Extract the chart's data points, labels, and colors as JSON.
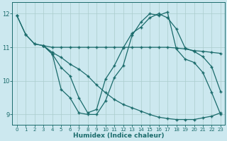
{
  "xlabel": "Humidex (Indice chaleur)",
  "bg_color": "#cce8ef",
  "grid_color": "#aacccc",
  "line_color": "#1a6b6b",
  "xlim": [
    -0.5,
    23.5
  ],
  "ylim": [
    8.7,
    12.35
  ],
  "xticks": [
    0,
    1,
    2,
    3,
    4,
    5,
    6,
    7,
    8,
    9,
    10,
    11,
    12,
    13,
    14,
    15,
    16,
    17,
    18,
    19,
    20,
    21,
    22,
    23
  ],
  "yticks": [
    9,
    10,
    11,
    12
  ],
  "line1_x": [
    0,
    1,
    2,
    3,
    4,
    5,
    6,
    7,
    8,
    9,
    10,
    11,
    12,
    13,
    14,
    15,
    16,
    17,
    18,
    19,
    20,
    21,
    22,
    23
  ],
  "line1_y": [
    11.95,
    11.38,
    11.1,
    11.05,
    11.0,
    11.0,
    11.0,
    11.0,
    11.0,
    11.0,
    11.0,
    11.0,
    11.0,
    11.0,
    11.0,
    11.0,
    11.0,
    11.0,
    10.98,
    10.95,
    10.9,
    10.88,
    10.85,
    10.82
  ],
  "line2_x": [
    0,
    1,
    2,
    3,
    4,
    5,
    6,
    7,
    8,
    9,
    10,
    11,
    12,
    13,
    14,
    15,
    16,
    17,
    18,
    19,
    20,
    21,
    22,
    23
  ],
  "line2_y": [
    11.95,
    11.38,
    11.1,
    11.05,
    10.85,
    10.7,
    10.5,
    10.35,
    10.15,
    9.88,
    9.65,
    9.45,
    9.3,
    9.2,
    9.1,
    9.0,
    8.92,
    8.88,
    8.85,
    8.85,
    8.85,
    8.9,
    8.95,
    9.05
  ],
  "line3_x": [
    3,
    4,
    5,
    6,
    7,
    8,
    9,
    10,
    11,
    12,
    13,
    14,
    15,
    16,
    17,
    18,
    19,
    20,
    21,
    22,
    23
  ],
  "line3_y": [
    11.05,
    10.8,
    9.75,
    9.5,
    9.05,
    9.0,
    9.0,
    9.4,
    10.1,
    10.45,
    11.35,
    11.75,
    12.0,
    11.95,
    12.05,
    10.95,
    10.65,
    10.55,
    10.25,
    9.65,
    9.0
  ],
  "line4_x": [
    3,
    4,
    5,
    6,
    7,
    8,
    9,
    10,
    11,
    12,
    13,
    14,
    15,
    16,
    17,
    18,
    19,
    20,
    21,
    22,
    23
  ],
  "line4_y": [
    11.05,
    10.8,
    10.4,
    10.15,
    9.5,
    9.05,
    9.15,
    10.05,
    10.45,
    10.98,
    11.42,
    11.6,
    11.88,
    12.0,
    11.88,
    11.55,
    10.98,
    10.88,
    10.72,
    10.42,
    9.68
  ]
}
